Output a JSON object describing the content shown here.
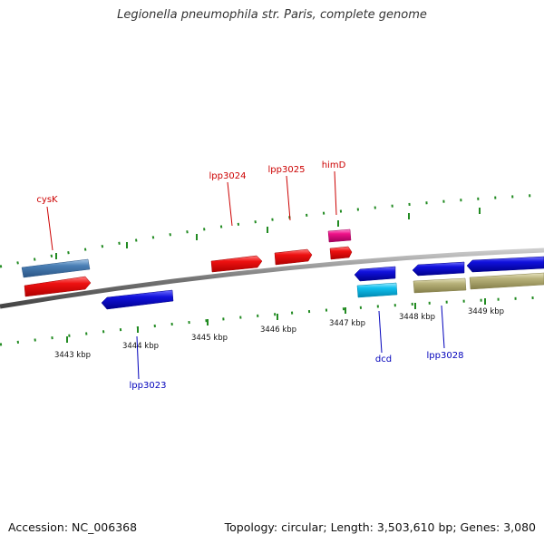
{
  "title": "Legionella pneumophila str. Paris, complete genome",
  "footer": {
    "accession": "Accession: NC_006368",
    "info": "Topology: circular; Length: 3,503,610 bp; Genes: 3,080"
  },
  "colors": {
    "backbone": "#888888",
    "tick": "#228B22",
    "gene_red": "#ee1111",
    "gene_blue": "#1111dd",
    "gene_steel": "#4a7fb5",
    "gene_pink": "#ee1188",
    "gene_cyan": "#10c0ee",
    "gene_khaki": "#b8b27a",
    "label_red": "#cc0000",
    "label_blue": "#0000bb"
  },
  "scale": {
    "ticks": [
      {
        "label": "3443 kbp"
      },
      {
        "label": "3444 kbp"
      },
      {
        "label": "3445 kbp"
      },
      {
        "label": "3446 kbp"
      },
      {
        "label": "3447 kbp"
      },
      {
        "label": "3448 kbp"
      },
      {
        "label": "3449 kbp"
      }
    ]
  },
  "gene_labels": [
    {
      "name": "cysK",
      "color": "label_red"
    },
    {
      "name": "lpp3024",
      "color": "label_red"
    },
    {
      "name": "lpp3025",
      "color": "label_red"
    },
    {
      "name": "himD",
      "color": "label_red"
    },
    {
      "name": "lpp3023",
      "color": "label_blue"
    },
    {
      "name": "dcd",
      "color": "label_blue"
    },
    {
      "name": "lpp3028",
      "color": "label_blue"
    }
  ]
}
